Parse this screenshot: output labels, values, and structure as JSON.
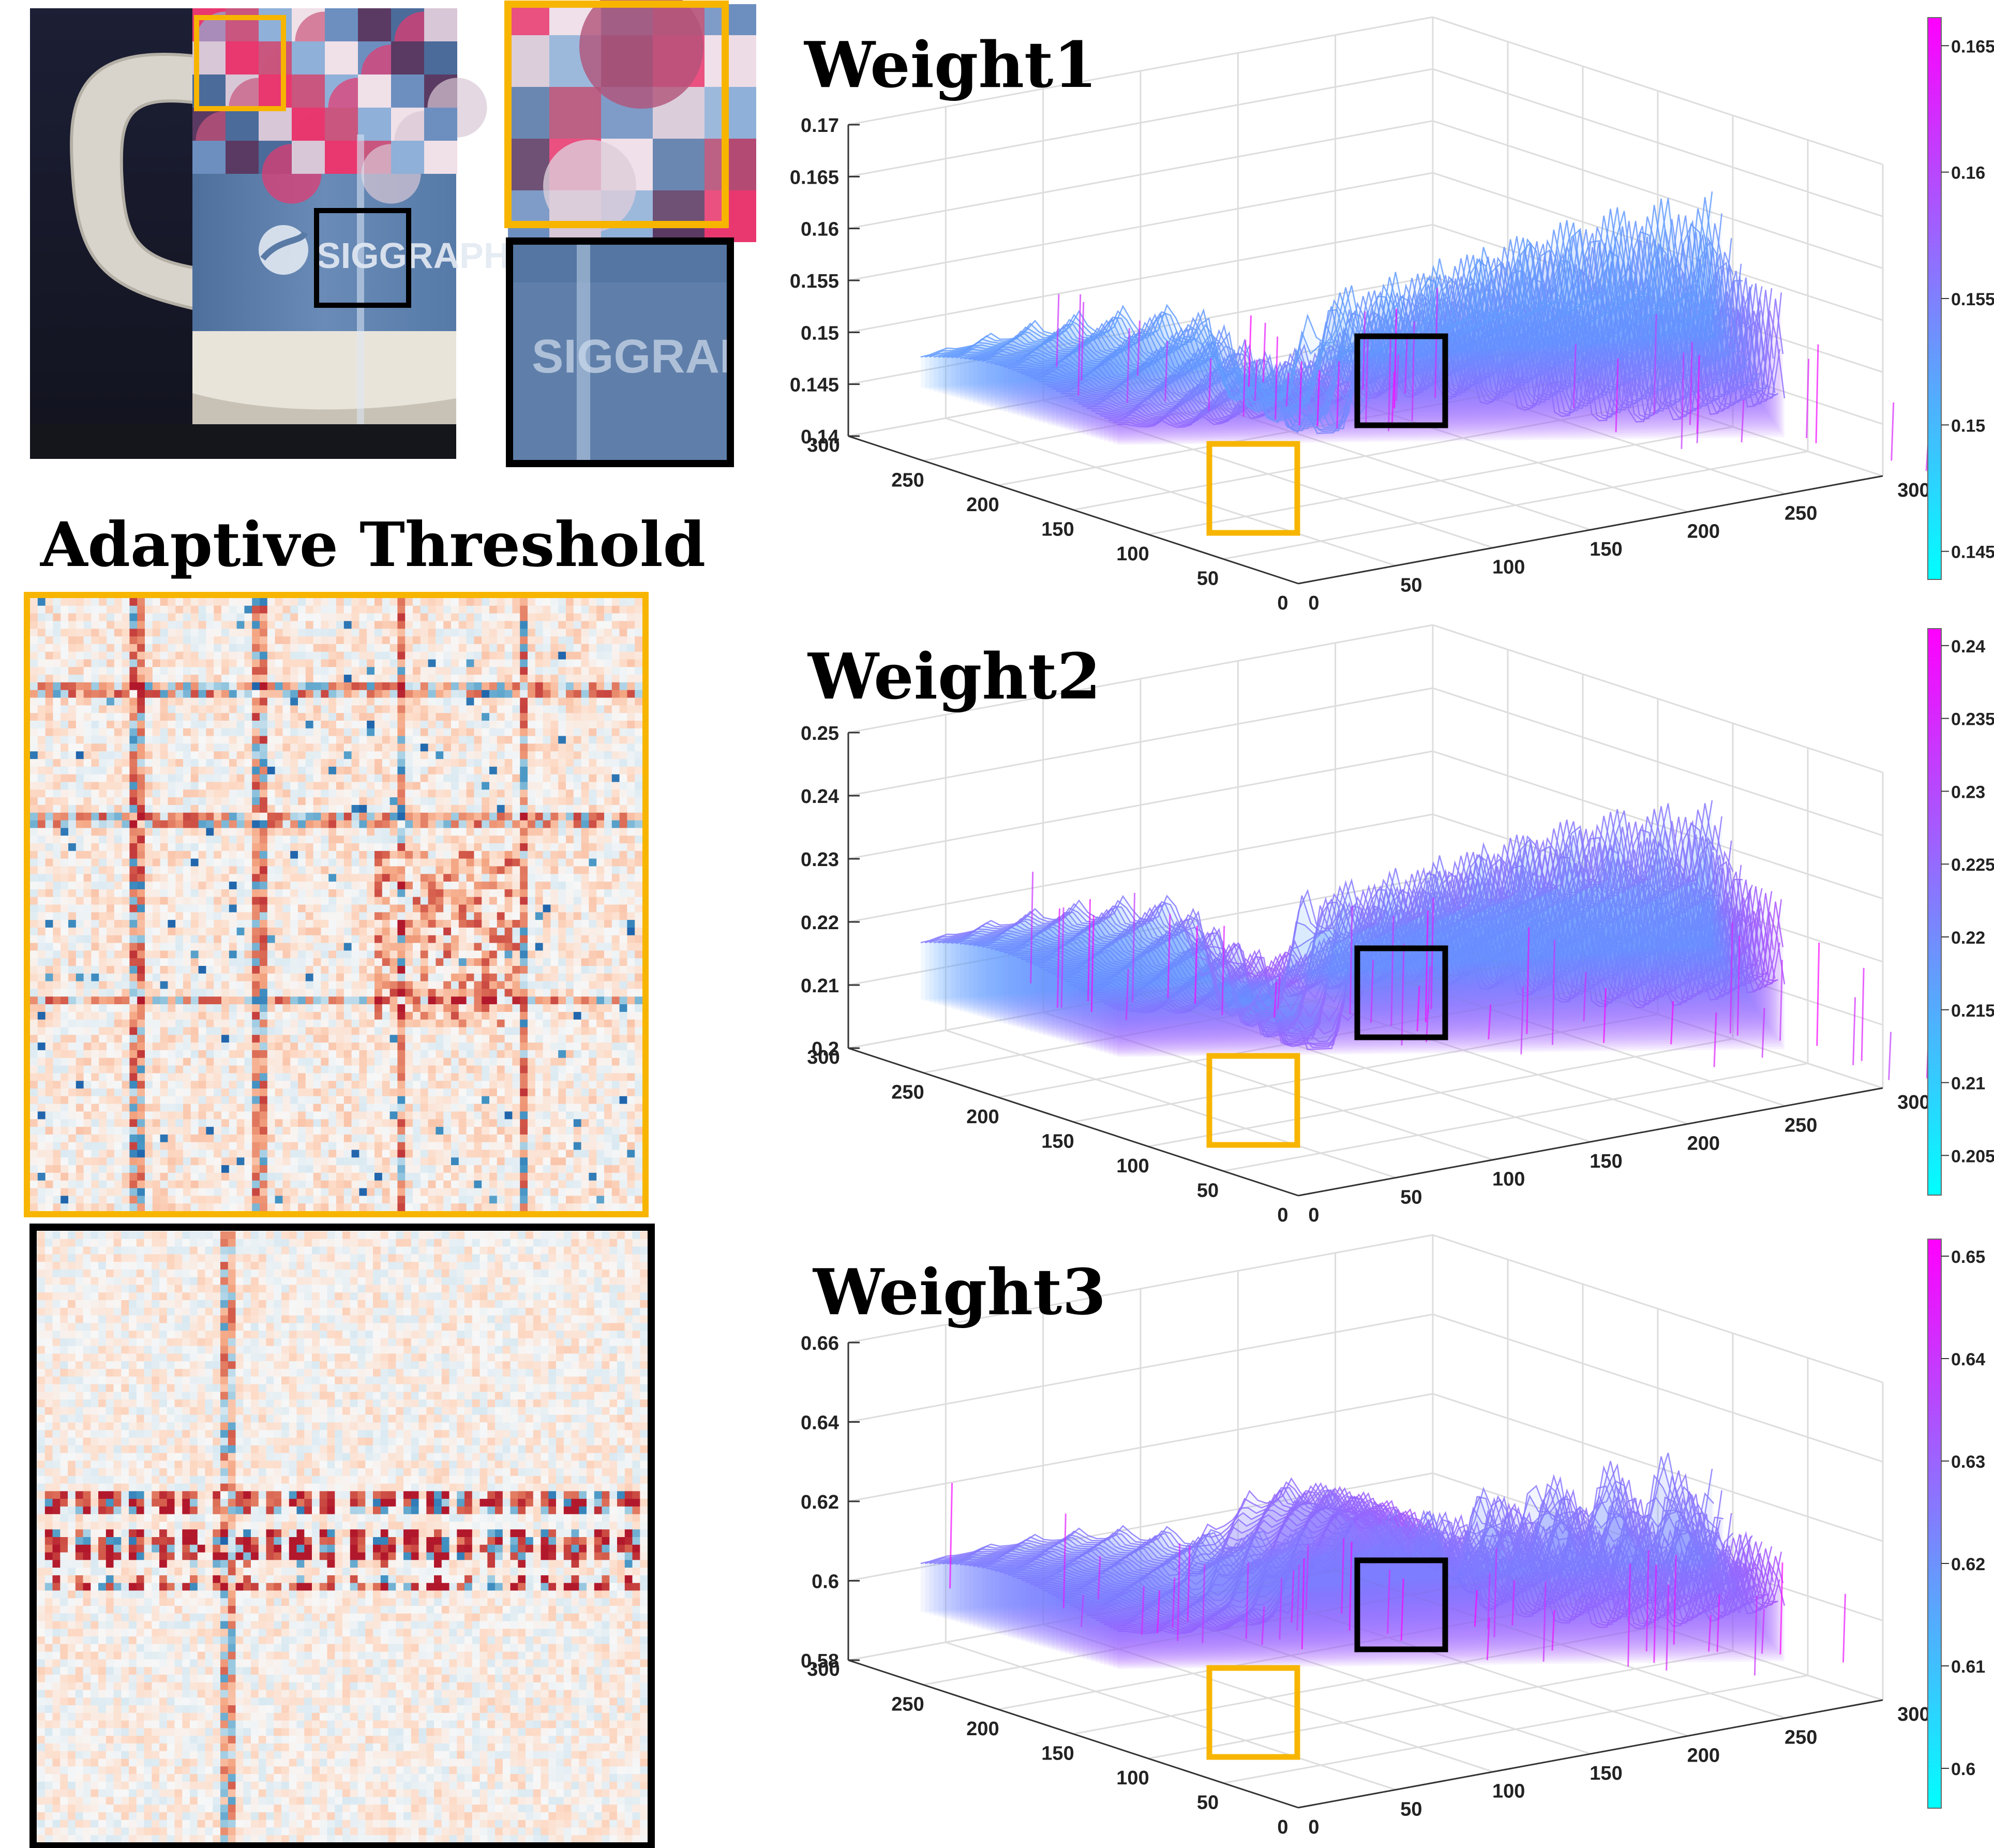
{
  "heading": "Adaptive Threshold",
  "colors": {
    "yellow_box": "#F7B500",
    "black_box": "#000000",
    "cool_low": "#00FFFF",
    "cool_high": "#FF00FF",
    "heat_red": "#B2182B",
    "heat_blue": "#2166AC",
    "grid": "#DDDDDD"
  },
  "photo": {
    "label_text": "SIGGRAPH",
    "crop_label_text": "SIGGRAI"
  },
  "chart_data": [
    {
      "type": "surface",
      "title": "Weight1",
      "z_ticks": [
        "0.17",
        "0.165",
        "0.16",
        "0.155",
        "0.15",
        "0.145",
        "0.14"
      ],
      "left_ticks": [
        "300",
        "250",
        "200",
        "150",
        "100",
        "50",
        "0"
      ],
      "right_ticks": [
        "0",
        "50",
        "100",
        "150",
        "200",
        "250",
        "300"
      ],
      "colorbar_ticks": [
        "0.165",
        "0.16",
        "0.155",
        "0.15",
        "0.145"
      ],
      "zlim": [
        0.14,
        0.17
      ],
      "colormap": "cool"
    },
    {
      "type": "surface",
      "title": "Weight2",
      "z_ticks": [
        "0.25",
        "0.24",
        "0.23",
        "0.22",
        "0.21",
        "0.2"
      ],
      "left_ticks": [
        "300",
        "250",
        "200",
        "150",
        "100",
        "50",
        "0"
      ],
      "right_ticks": [
        "0",
        "50",
        "100",
        "150",
        "200",
        "250",
        "300"
      ],
      "colorbar_ticks": [
        "0.24",
        "0.235",
        "0.23",
        "0.225",
        "0.22",
        "0.215",
        "0.21",
        "0.205"
      ],
      "zlim": [
        0.2,
        0.25
      ],
      "colormap": "cool"
    },
    {
      "type": "surface",
      "title": "Weight3",
      "z_ticks": [
        "0.66",
        "0.64",
        "0.62",
        "0.6",
        "0.58"
      ],
      "left_ticks": [
        "300",
        "250",
        "200",
        "150",
        "100",
        "50",
        "0"
      ],
      "right_ticks": [
        "0",
        "50",
        "100",
        "150",
        "200",
        "250",
        "300"
      ],
      "colorbar_ticks": [
        "0.65",
        "0.64",
        "0.63",
        "0.62",
        "0.61",
        "0.6"
      ],
      "zlim": [
        0.58,
        0.66
      ],
      "colormap": "cool"
    }
  ]
}
